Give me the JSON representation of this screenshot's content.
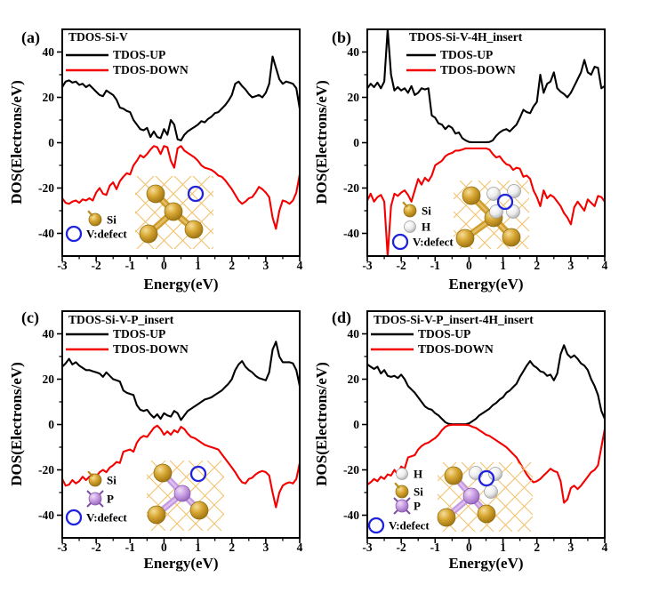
{
  "figure": {
    "title": "",
    "panels": 4
  },
  "colors": {
    "up": "#000000",
    "down": "#f40000",
    "frame": "#000000",
    "si_gold": "#d8a733",
    "p_plum": "#cca3e4",
    "h_white": "#ededed",
    "defect_blue": "#1f23dd",
    "lattice_orange": "#f2c26e"
  },
  "chart_data": [
    {
      "type": "line",
      "panel_label": "(a)",
      "title": "TDOS-Si-V",
      "xlabel": "Energy(eV)",
      "ylabel": "DOS(Electrons/eV)",
      "xlim": [
        -3,
        4
      ],
      "ylim": [
        -50,
        50
      ],
      "xticks": [
        -3,
        -2,
        -1,
        0,
        1,
        2,
        3,
        4
      ],
      "yticks": [
        -40,
        -20,
        0,
        20,
        40
      ],
      "x_start": -3,
      "x_step": 0.1,
      "grid": false,
      "legend_position": "upper-left",
      "legend": [
        {
          "label": "TDOS-UP",
          "color": "#000000"
        },
        {
          "label": "TDOS-DOWN",
          "color": "#f40000"
        }
      ],
      "structure": "si-v",
      "inset_legend": [
        {
          "marker": "si",
          "label": "Si"
        },
        {
          "marker": "v",
          "label": "V:defect"
        }
      ],
      "series": [
        {
          "name": "TDOS-UP",
          "color": "#000000",
          "values": [
            24.5,
            27,
            27.5,
            26.5,
            27,
            25.5,
            26,
            24.5,
            25.5,
            24,
            22.5,
            21,
            20.5,
            23,
            22,
            21,
            19,
            15.5,
            15,
            14,
            13.5,
            10,
            8,
            6,
            5.5,
            6.5,
            2.5,
            5,
            2.5,
            2,
            6,
            3.5,
            10,
            8,
            1.5,
            1,
            3.5,
            5,
            6,
            7,
            8,
            9.5,
            9,
            10.5,
            11.5,
            13,
            13.5,
            15,
            16.5,
            18.5,
            21,
            26,
            27,
            25,
            23.5,
            21.5,
            20,
            20.5,
            21,
            20,
            22,
            26,
            38,
            33,
            28,
            26,
            27,
            26.5,
            26,
            24,
            15
          ]
        },
        {
          "name": "TDOS-DOWN",
          "color": "#f40000",
          "values": [
            -24.5,
            -26.5,
            -27,
            -26,
            -25.5,
            -26.5,
            -25,
            -25.5,
            -24.5,
            -25.5,
            -22,
            -20,
            -22.5,
            -23,
            -19,
            -17.5,
            -20.5,
            -17,
            -15,
            -13.5,
            -14,
            -10,
            -8,
            -5.5,
            -6.5,
            -5,
            -3,
            -1.5,
            -2,
            -5,
            -1.5,
            -2,
            -8,
            -11,
            -2.5,
            -1.5,
            -3.5,
            -4.5,
            -5.5,
            -6.5,
            -8,
            -10,
            -11,
            -11.5,
            -12,
            -13,
            -14.5,
            -15,
            -16.5,
            -18.5,
            -20.5,
            -23,
            -25.5,
            -27,
            -26,
            -24.5,
            -24,
            -22,
            -19.5,
            -20.5,
            -22,
            -24,
            -33,
            -38,
            -30,
            -25.5,
            -26,
            -27,
            -25.5,
            -22,
            -14
          ]
        }
      ]
    },
    {
      "type": "line",
      "panel_label": "(b)",
      "title": "TDOS-Si-V-4H_insert",
      "xlabel": "Energy(eV)",
      "ylabel": "DOS(Electrons/eV)",
      "xlim": [
        -3,
        4
      ],
      "ylim": [
        -50,
        50
      ],
      "xticks": [
        -3,
        -2,
        -1,
        0,
        1,
        2,
        3,
        4
      ],
      "yticks": [
        -40,
        -20,
        0,
        20,
        40
      ],
      "x_start": -3,
      "x_step": 0.1,
      "grid": false,
      "legend_position": "upper-left",
      "legend": [
        {
          "label": "TDOS-UP",
          "color": "#000000"
        },
        {
          "label": "TDOS-DOWN",
          "color": "#f40000"
        }
      ],
      "structure": "si-v-4h",
      "inset_legend": [
        {
          "marker": "si",
          "label": "Si"
        },
        {
          "marker": "h",
          "label": "H"
        },
        {
          "marker": "v",
          "label": "V:defect"
        }
      ],
      "series": [
        {
          "name": "TDOS-UP",
          "color": "#000000",
          "values": [
            24,
            26,
            24.5,
            26.5,
            24,
            27,
            50,
            30,
            23,
            24.5,
            23,
            24,
            22,
            25,
            21,
            22,
            24,
            23.5,
            24,
            12,
            11,
            8.5,
            8,
            6,
            7.5,
            6.5,
            4,
            4.5,
            2,
            1,
            0.3,
            0.2,
            0.2,
            0.2,
            0.2,
            0.2,
            0.3,
            1,
            3,
            4.5,
            5.5,
            6,
            5,
            6.5,
            8,
            11,
            14.5,
            13.5,
            13,
            16,
            18,
            30,
            22,
            26,
            27,
            31,
            24,
            22.5,
            21.5,
            20,
            22,
            25,
            28,
            31,
            36.5,
            31,
            30,
            33.5,
            33,
            24,
            25
          ]
        },
        {
          "name": "TDOS-DOWN",
          "color": "#f40000",
          "values": [
            -25.5,
            -22.5,
            -26,
            -24,
            -23,
            -26,
            -50,
            -28,
            -22.5,
            -23.5,
            -22,
            -21,
            -23,
            -26,
            -21,
            -16,
            -18.5,
            -15.5,
            -17,
            -14.5,
            -10,
            -9,
            -8,
            -6,
            -5,
            -4.5,
            -3.5,
            -3.5,
            -3,
            -2.5,
            -2.5,
            -2.5,
            -2.5,
            -2.5,
            -2.5,
            -2.5,
            -3,
            -5,
            -6.5,
            -6,
            -8,
            -9.5,
            -10,
            -12,
            -11,
            -11.5,
            -15,
            -14.5,
            -16,
            -21,
            -24,
            -28,
            -21,
            -24.5,
            -23,
            -24,
            -26,
            -28,
            -31,
            -33,
            -36,
            -28.5,
            -26,
            -28,
            -30,
            -25,
            -26.5,
            -28,
            -23.5,
            -24,
            -26
          ]
        }
      ]
    },
    {
      "type": "line",
      "panel_label": "(c)",
      "title": "TDOS-Si-V-P_insert",
      "xlabel": "Energy(eV)",
      "ylabel": "DOS(Electrons/eV)",
      "xlim": [
        -3,
        4
      ],
      "ylim": [
        -50,
        50
      ],
      "xticks": [
        -3,
        -2,
        -1,
        0,
        1,
        2,
        3,
        4
      ],
      "yticks": [
        -40,
        -20,
        0,
        20,
        40
      ],
      "x_start": -3,
      "x_step": 0.1,
      "grid": false,
      "legend_position": "upper-left",
      "legend": [
        {
          "label": "TDOS-UP",
          "color": "#000000"
        },
        {
          "label": "TDOS-DOWN",
          "color": "#f40000"
        }
      ],
      "structure": "si-v-p",
      "inset_legend": [
        {
          "marker": "si",
          "label": "Si"
        },
        {
          "marker": "p",
          "label": "P"
        },
        {
          "marker": "v",
          "label": "V:defect"
        }
      ],
      "series": [
        {
          "name": "TDOS-UP",
          "color": "#000000",
          "values": [
            25.5,
            27,
            29,
            26.5,
            27.5,
            26,
            25,
            24,
            24,
            23.5,
            23,
            22.5,
            21,
            23,
            21.5,
            20,
            19.5,
            19,
            15,
            14,
            13.5,
            13,
            8.5,
            6.5,
            6,
            6.5,
            4.5,
            3,
            4.5,
            2.5,
            5,
            4,
            3.5,
            6,
            5,
            2,
            4,
            6,
            7,
            8,
            9,
            10,
            11,
            11.5,
            12,
            13,
            14,
            15,
            16.5,
            18,
            20,
            24,
            26.5,
            28,
            25.5,
            24,
            23,
            21.5,
            20.5,
            20,
            19.5,
            23,
            33,
            36.5,
            30,
            27.5,
            27.5,
            27.5,
            27,
            24,
            17
          ]
        },
        {
          "name": "TDOS-DOWN",
          "color": "#f40000",
          "values": [
            -24,
            -27,
            -26.5,
            -24.5,
            -26,
            -25,
            -23,
            -24.5,
            -23,
            -22,
            -23,
            -21,
            -20,
            -21,
            -19,
            -18,
            -16.5,
            -17,
            -12,
            -11.5,
            -11,
            -12,
            -8,
            -6,
            -5,
            -5.5,
            -3.5,
            -1.5,
            -0.5,
            -2,
            -4.5,
            -3,
            -4.5,
            -2.5,
            -3.5,
            -1,
            -2,
            -4,
            -5.5,
            -6,
            -7,
            -8,
            -9,
            -9.5,
            -10,
            -10.5,
            -11,
            -13,
            -15,
            -17,
            -19,
            -21,
            -23.5,
            -25.5,
            -26,
            -24,
            -23.5,
            -22,
            -21,
            -20.5,
            -21,
            -22.5,
            -30,
            -36.5,
            -30,
            -27,
            -26,
            -25.5,
            -26,
            -24,
            -17
          ]
        }
      ]
    },
    {
      "type": "line",
      "panel_label": "(d)",
      "title": "TDOS-Si-V-P_insert-4H_insert",
      "xlabel": "Energy(eV)",
      "ylabel": "DOS(Electrons/eV)",
      "xlim": [
        -3,
        4
      ],
      "ylim": [
        -50,
        50
      ],
      "xticks": [
        -3,
        -2,
        -1,
        0,
        1,
        2,
        3,
        4
      ],
      "yticks": [
        -40,
        -20,
        0,
        20,
        40
      ],
      "x_start": -3,
      "x_step": 0.1,
      "grid": false,
      "legend_position": "upper-left",
      "legend": [
        {
          "label": "TDOS-UP",
          "color": "#000000"
        },
        {
          "label": "TDOS-DOWN",
          "color": "#f40000"
        }
      ],
      "structure": "si-v-p-4h",
      "inset_legend": [
        {
          "marker": "h",
          "label": "H"
        },
        {
          "marker": "si",
          "label": "Si"
        },
        {
          "marker": "p",
          "label": "P"
        },
        {
          "marker": "v",
          "label": "V:defect"
        }
      ],
      "series": [
        {
          "name": "TDOS-UP",
          "color": "#000000",
          "values": [
            26.5,
            25.5,
            24.5,
            25.5,
            22.5,
            24,
            21.5,
            21,
            21.5,
            20.5,
            22,
            20,
            17,
            15.5,
            14,
            12,
            10,
            8,
            7,
            6.5,
            5,
            4,
            2.5,
            1,
            0.3,
            0.1,
            0.1,
            0.1,
            0.1,
            0.1,
            0.5,
            1.5,
            2.5,
            4,
            5,
            6,
            7,
            8.5,
            9.5,
            11,
            12,
            14,
            15,
            16.5,
            18,
            21,
            23.5,
            26,
            28,
            26,
            25,
            23.5,
            23,
            21.5,
            22,
            19.5,
            22.5,
            31,
            35,
            31,
            29.5,
            30.5,
            29,
            27,
            26,
            24,
            20,
            17,
            13,
            6,
            2.5
          ]
        },
        {
          "name": "TDOS-DOWN",
          "color": "#f40000",
          "values": [
            -26.5,
            -25.5,
            -24,
            -25,
            -23,
            -24,
            -22,
            -22.5,
            -20,
            -22,
            -18.5,
            -19.5,
            -14.5,
            -14,
            -13.5,
            -11,
            -9.5,
            -8.5,
            -8,
            -7,
            -6,
            -4.5,
            -2.5,
            -1,
            -0.3,
            -0.1,
            -0.1,
            -0.1,
            -0.1,
            -0.1,
            -0.3,
            -1,
            -1.5,
            -2.5,
            -3.5,
            -4.5,
            -5,
            -6,
            -7,
            -8,
            -9,
            -10,
            -11.5,
            -13,
            -14.5,
            -17,
            -19.5,
            -22,
            -24,
            -25.5,
            -25,
            -24,
            -22.5,
            -21,
            -19.5,
            -20.5,
            -21,
            -25,
            -34.5,
            -33,
            -28,
            -27,
            -28.5,
            -27,
            -25,
            -23,
            -21,
            -20,
            -18,
            -10,
            -2
          ]
        }
      ]
    }
  ]
}
